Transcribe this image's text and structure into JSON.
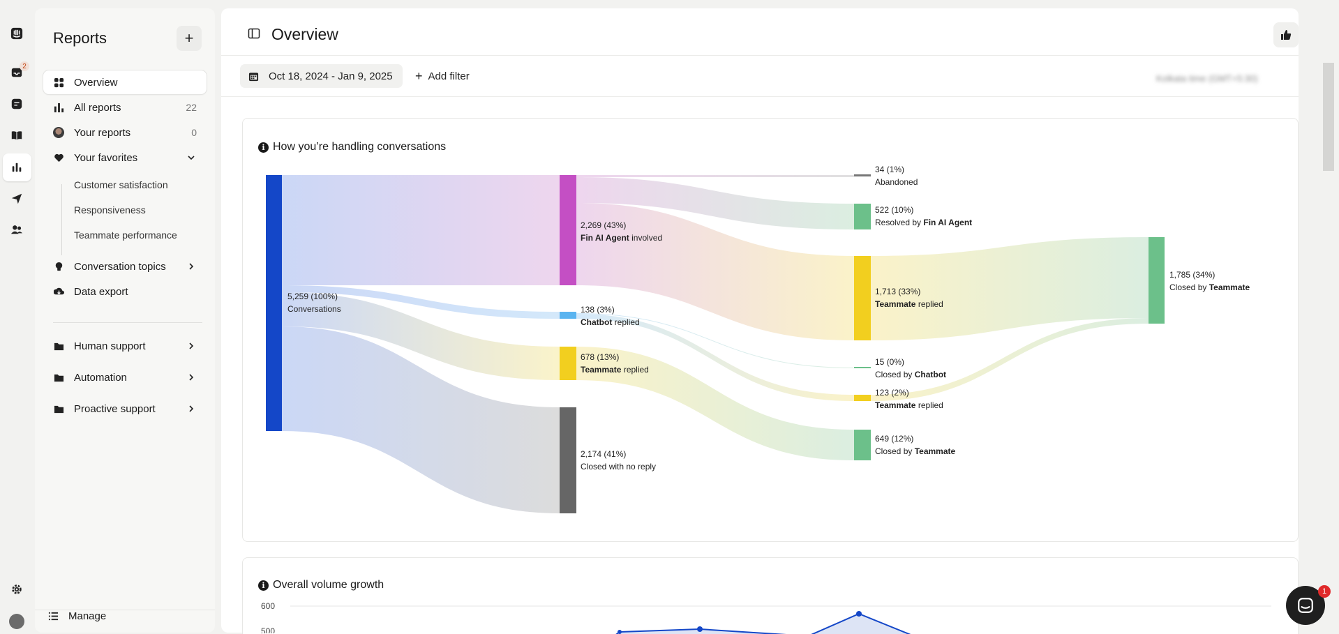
{
  "rail": {
    "inbox_badge": "2"
  },
  "sidebar": {
    "title": "Reports",
    "add_label": "+",
    "items": [
      {
        "label": "Overview"
      },
      {
        "label": "All reports",
        "count": "22"
      },
      {
        "label": "Your reports",
        "count": "0"
      },
      {
        "label": "Your favorites"
      },
      {
        "label": "Conversation topics"
      },
      {
        "label": "Data export"
      },
      {
        "label": "Human support"
      },
      {
        "label": "Automation"
      },
      {
        "label": "Proactive support"
      }
    ],
    "favorites": [
      "Customer satisfaction",
      "Responsiveness",
      "Teammate performance"
    ],
    "manage_label": "Manage"
  },
  "header": {
    "title": "Overview"
  },
  "filters": {
    "date_range": "Oct 18, 2024 - Jan 9, 2025",
    "add_filter_label": "Add filter",
    "timezone": "Kolkata time (GMT+5:30)"
  },
  "conversations_card": {
    "title": "How you’re handling conversations",
    "info": "i",
    "nodes": [
      {
        "value": "5,259 (100%)",
        "label": "Conversations"
      },
      {
        "value": "2,269 (43%)",
        "label_bold": "Fin AI Agent",
        "label_rest": " involved"
      },
      {
        "value": "138 (3%)",
        "label_bold": "Chatbot",
        "label_rest": " replied"
      },
      {
        "value": "678 (13%)",
        "label_bold": "Teammate",
        "label_rest": " replied"
      },
      {
        "value": "2,174 (41%)",
        "label": "Closed with no reply"
      },
      {
        "value": "34 (1%)",
        "label": "Abandoned"
      },
      {
        "value": "522 (10%)",
        "label_pre": "Resolved by ",
        "label_bold": "Fin AI Agent"
      },
      {
        "value": "1,713 (33%)",
        "label_bold": "Teammate",
        "label_rest": " replied"
      },
      {
        "value": "15 (0%)",
        "label_pre": "Closed by ",
        "label_bold": "Chatbot"
      },
      {
        "value": "123 (2%)",
        "label_bold": "Teammate",
        "label_rest": " replied"
      },
      {
        "value": "649 (12%)",
        "label_pre": "Closed by ",
        "label_bold": "Teammate"
      },
      {
        "value": "1,785 (34%)",
        "label_pre": "Closed by ",
        "label_bold": "Teammate"
      }
    ],
    "colors": {
      "conversations": "#1447c8",
      "fin": "#c44fc4",
      "chatbot": "#5ab4f0",
      "teammate": "#f2cf1f",
      "no_reply": "#666666",
      "abandoned": "#777777",
      "resolved": "#6cc08a"
    }
  },
  "volume_card": {
    "title": "Overall volume growth",
    "info": "i",
    "y_ticks": [
      "600",
      "500"
    ]
  },
  "messenger": {
    "badge": "1"
  }
}
